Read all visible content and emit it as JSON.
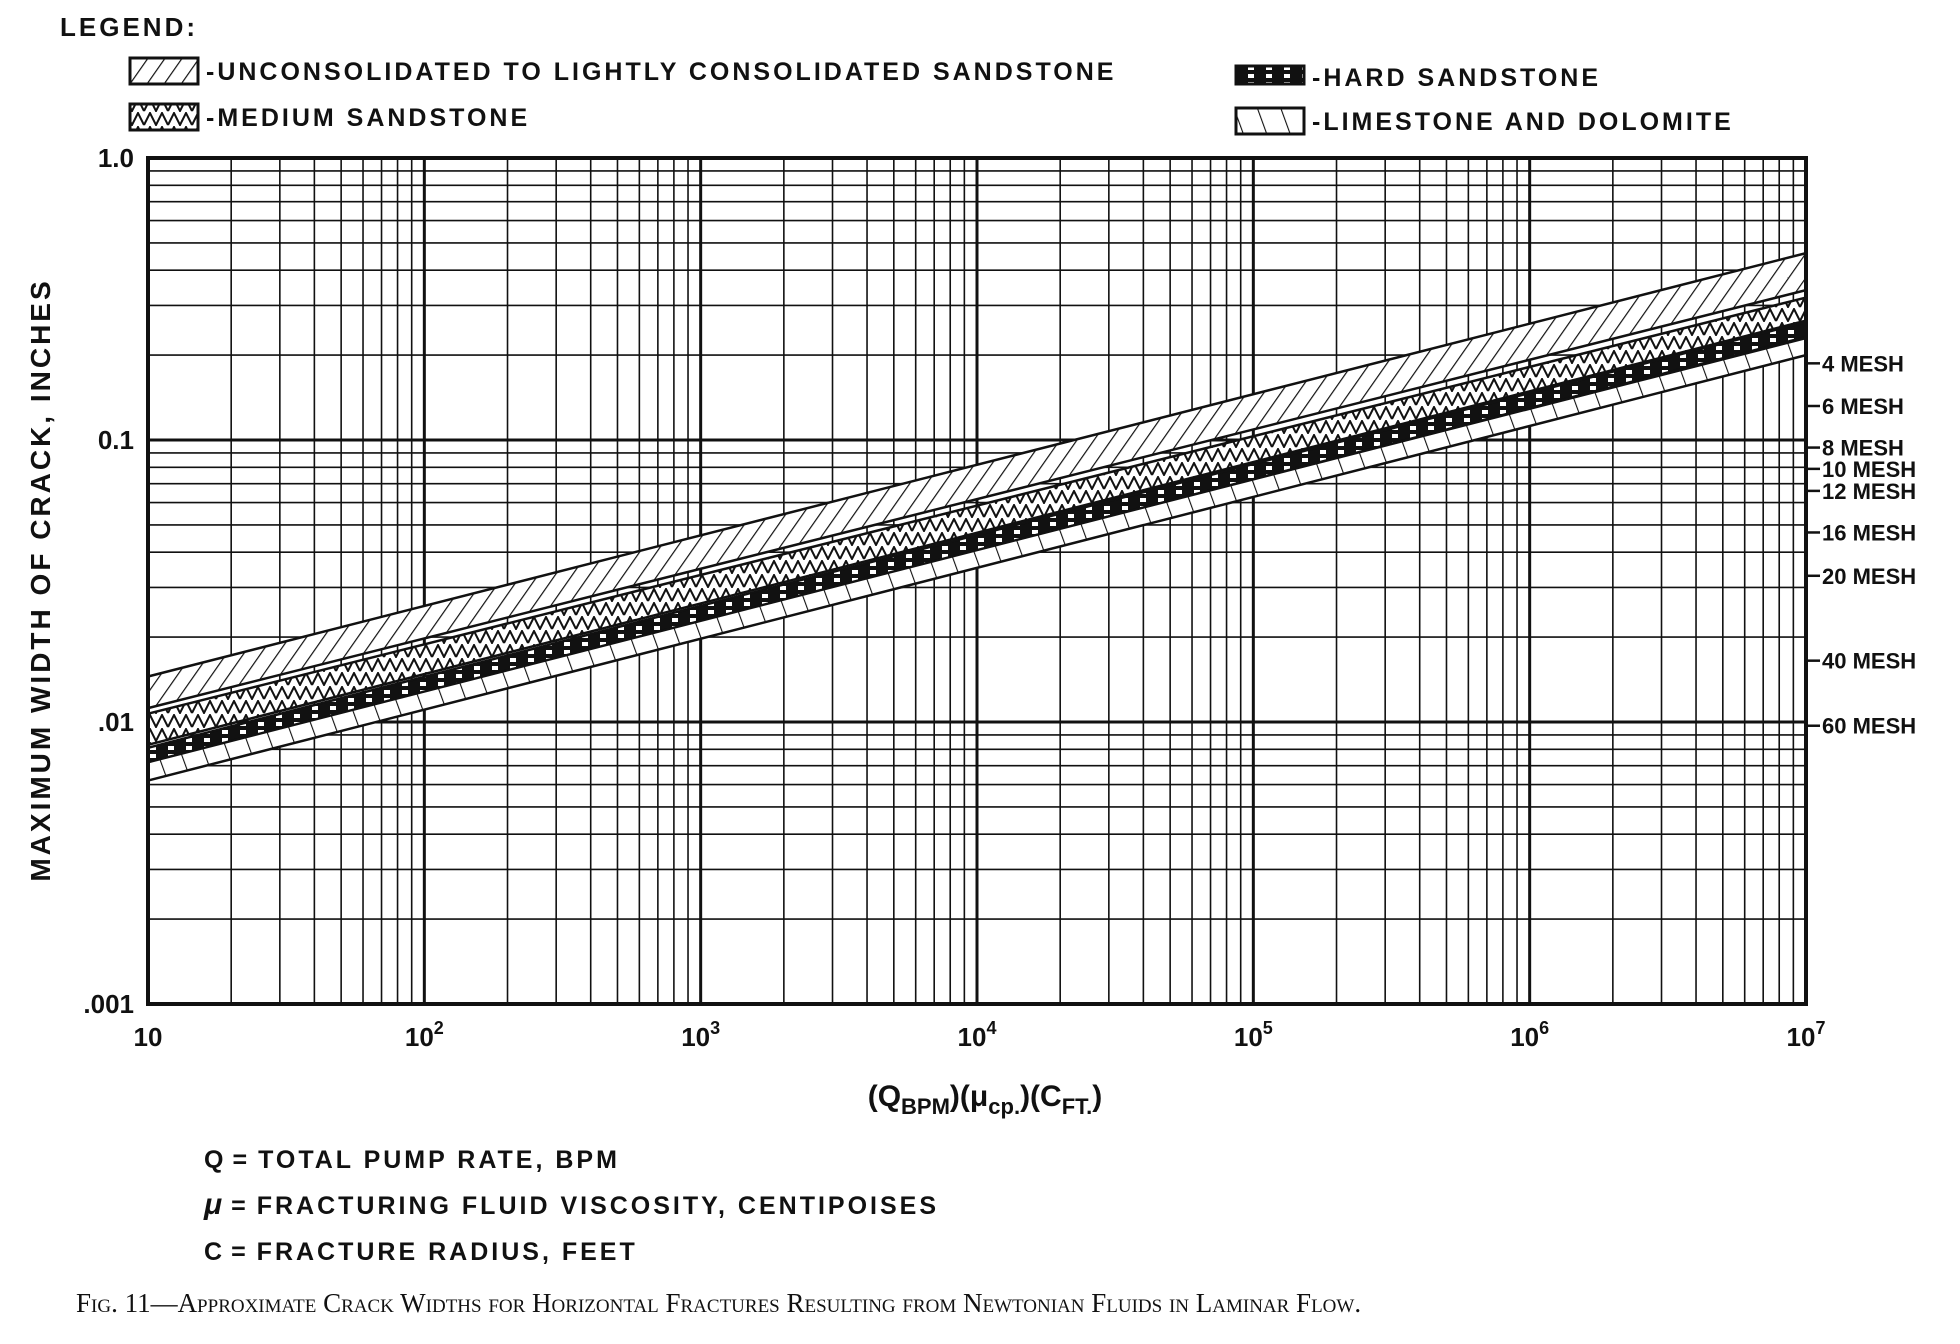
{
  "legend": {
    "title": "LEGEND:",
    "items": [
      {
        "id": "unconsolidated",
        "label": "-UNCONSOLIDATED TO LIGHTLY CONSOLIDATED SANDSTONE",
        "pattern": "diag-right"
      },
      {
        "id": "medium",
        "label": "-MEDIUM SANDSTONE",
        "pattern": "zigzag"
      },
      {
        "id": "hard",
        "label": "-HARD SANDSTONE",
        "pattern": "dashed-block"
      },
      {
        "id": "limestone",
        "label": "-LIMESTONE AND DOLOMITE",
        "pattern": "diag-left"
      }
    ]
  },
  "chart_data": {
    "type": "area",
    "xscale": "log",
    "yscale": "log",
    "xlim": [
      10,
      10000000
    ],
    "ylim": [
      0.001,
      1.0
    ],
    "grid": true,
    "legend_position": "top",
    "ylabel": "MAXIMUM WIDTH OF CRACK, INCHES",
    "xlabel": {
      "q": "(Q",
      "q_sub": "BPM",
      "mu": ")(μ",
      "mu_sub": "cp.",
      "c": ")(C",
      "c_sub": "FT.",
      "end": ")"
    },
    "x_ticks": [
      {
        "value": 10,
        "base": "10",
        "exp": ""
      },
      {
        "value": 100,
        "base": "10",
        "exp": "2"
      },
      {
        "value": 1000,
        "base": "10",
        "exp": "3"
      },
      {
        "value": 10000,
        "base": "10",
        "exp": "4"
      },
      {
        "value": 100000,
        "base": "10",
        "exp": "5"
      },
      {
        "value": 1000000,
        "base": "10",
        "exp": "6"
      },
      {
        "value": 10000000,
        "base": "10",
        "exp": "7"
      }
    ],
    "y_ticks": [
      {
        "value": 1.0,
        "label": "1.0"
      },
      {
        "value": 0.1,
        "label": "0.1"
      },
      {
        "value": 0.01,
        "label": ".01"
      },
      {
        "value": 0.001,
        "label": ".001"
      }
    ],
    "series": [
      {
        "name": "UNCONSOLIDATED TO LIGHTLY CONSOLIDATED SANDSTONE",
        "x": [
          10,
          10000000
        ],
        "lower": [
          0.0112,
          0.34
        ],
        "upper": [
          0.0145,
          0.46
        ]
      },
      {
        "name": "MEDIUM SANDSTONE",
        "x": [
          10,
          10000000
        ],
        "lower": [
          0.0083,
          0.265
        ],
        "upper": [
          0.0107,
          0.32
        ]
      },
      {
        "name": "HARD SANDSTONE",
        "x": [
          10,
          10000000
        ],
        "lower": [
          0.0071,
          0.232
        ],
        "upper": [
          0.0081,
          0.262
        ]
      },
      {
        "name": "LIMESTONE AND DOLOMITE",
        "x": [
          10,
          10000000
        ],
        "lower": [
          0.0062,
          0.2
        ],
        "upper": [
          0.0072,
          0.23
        ]
      }
    ],
    "mesh_scale": [
      {
        "label": "4 MESH",
        "value": 0.187
      },
      {
        "label": "6 MESH",
        "value": 0.132
      },
      {
        "label": "8 MESH",
        "value": 0.094
      },
      {
        "label": "10 MESH",
        "value": 0.079
      },
      {
        "label": "12 MESH",
        "value": 0.066
      },
      {
        "label": "16 MESH",
        "value": 0.047
      },
      {
        "label": "20 MESH",
        "value": 0.033
      },
      {
        "label": "40 MESH",
        "value": 0.0165
      },
      {
        "label": "60 MESH",
        "value": 0.0097
      }
    ]
  },
  "definitions": [
    {
      "symbol": "Q",
      "sep": "=",
      "text": "TOTAL PUMP RATE, BPM"
    },
    {
      "symbol": "μ",
      "sep": "=",
      "text": "FRACTURING FLUID VISCOSITY, CENTIPOISES"
    },
    {
      "symbol": "C",
      "sep": "=",
      "text": "FRACTURE RADIUS, FEET"
    }
  ],
  "caption": "Fig. 11—Approximate Crack Widths for Horizontal Fractures Resulting from Newtonian Fluids in Laminar Flow."
}
